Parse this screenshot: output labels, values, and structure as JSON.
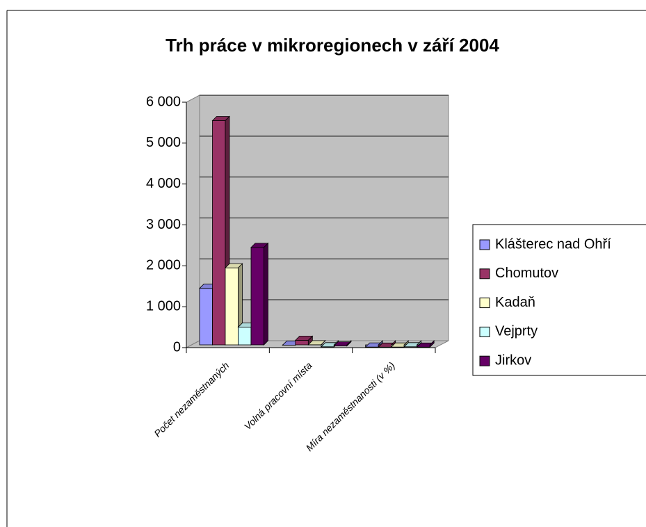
{
  "chart_data": {
    "type": "bar3d",
    "title": "Trh práce v mikroregionech v září 2004",
    "categories": [
      "Počet nezaměstnaných",
      "Volná pracovní místa",
      "Míra nezaměstnanosti (v %)"
    ],
    "series": [
      {
        "name": "Klášterec nad Ohří",
        "color": "#9999ff",
        "values": [
          1450,
          60,
          15
        ]
      },
      {
        "name": "Chomutov",
        "color": "#993366",
        "values": [
          5550,
          180,
          12
        ]
      },
      {
        "name": "Kadaň",
        "color": "#ffffcc",
        "values": [
          1950,
          70,
          14
        ]
      },
      {
        "name": "Vejprty",
        "color": "#ccffff",
        "values": [
          500,
          20,
          20
        ]
      },
      {
        "name": "Jirkov",
        "color": "#660066",
        "values": [
          2450,
          40,
          13
        ]
      }
    ],
    "ylim": [
      0,
      6000
    ],
    "yticks": [
      0,
      {
        "value": 1000,
        "label": "1 000"
      },
      {
        "value": 2000,
        "label": "2 000"
      },
      {
        "value": 3000,
        "label": "3 000"
      },
      {
        "value": 4000,
        "label": "4 000"
      },
      {
        "value": 5000,
        "label": "5 000"
      },
      {
        "value": 6000,
        "label": "6 000"
      }
    ],
    "grid": true,
    "legend": "right"
  }
}
